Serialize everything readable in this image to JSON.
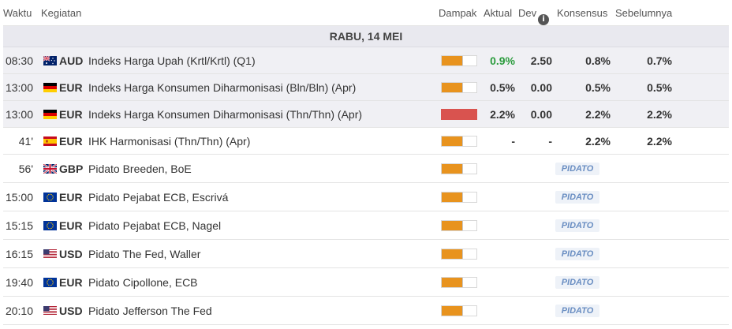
{
  "header": {
    "time": "Waktu",
    "event": "Kegiatan",
    "impact": "Dampak",
    "actual": "Aktual",
    "dev": "Dev",
    "consensus": "Konsensus",
    "previous": "Sebelumnya"
  },
  "day": "RABU, 14 MEI",
  "rows": [
    {
      "time": "08:30",
      "currency": "AUD",
      "flag": "australia-flag-icon",
      "event": "Indeks Harga Upah (Krtl/Krtl) (Q1)",
      "impact": "medium",
      "actual": "0.9%",
      "dev": "2.50",
      "consensus": "0.8%",
      "previous": "0.7%"
    },
    {
      "time": "13:00",
      "currency": "EUR",
      "flag": "germany-flag-icon",
      "event": "Indeks Harga Konsumen Diharmonisasi (Bln/Bln) (Apr)",
      "impact": "medium",
      "actual": "0.5%",
      "dev": "0.00",
      "consensus": "0.5%",
      "previous": "0.5%"
    },
    {
      "time": "13:00",
      "currency": "EUR",
      "flag": "germany-flag-icon",
      "event": "Indeks Harga Konsumen Diharmonisasi (Thn/Thn) (Apr)",
      "impact": "high",
      "actual": "2.2%",
      "dev": "0.00",
      "consensus": "2.2%",
      "previous": "2.2%"
    },
    {
      "time": "41'",
      "currency": "EUR",
      "flag": "spain-flag-icon",
      "event": "IHK Harmonisasi (Thn/Thn) (Apr)",
      "impact": "medium",
      "actual": "-",
      "dev": "-",
      "consensus": "2.2%",
      "previous": "2.2%"
    },
    {
      "time": "56'",
      "currency": "GBP",
      "flag": "uk-flag-icon",
      "event": "Pidato Breeden, BoE",
      "impact": "medium",
      "pidato": "PIDATO"
    },
    {
      "time": "15:00",
      "currency": "EUR",
      "flag": "eu-flag-icon",
      "event": "Pidato Pejabat ECB, Escrivá",
      "impact": "medium",
      "pidato": "PIDATO"
    },
    {
      "time": "15:15",
      "currency": "EUR",
      "flag": "eu-flag-icon",
      "event": "Pidato Pejabat ECB, Nagel",
      "impact": "medium",
      "pidato": "PIDATO"
    },
    {
      "time": "16:15",
      "currency": "USD",
      "flag": "us-flag-icon",
      "event": "Pidato The Fed, Waller",
      "impact": "medium",
      "pidato": "PIDATO"
    },
    {
      "time": "19:40",
      "currency": "EUR",
      "flag": "eu-flag-icon",
      "event": "Pidato Cipollone, ECB",
      "impact": "medium",
      "pidato": "PIDATO"
    },
    {
      "time": "20:10",
      "currency": "USD",
      "flag": "us-flag-icon",
      "event": "Pidato Jefferson The Fed",
      "impact": "medium",
      "pidato": "PIDATO"
    }
  ],
  "colors": {
    "actual_good": "#2a9b3c",
    "impact_medium": "#e8931e",
    "impact_high": "#d9534f",
    "past_row_bg": "#f0f0f4"
  }
}
